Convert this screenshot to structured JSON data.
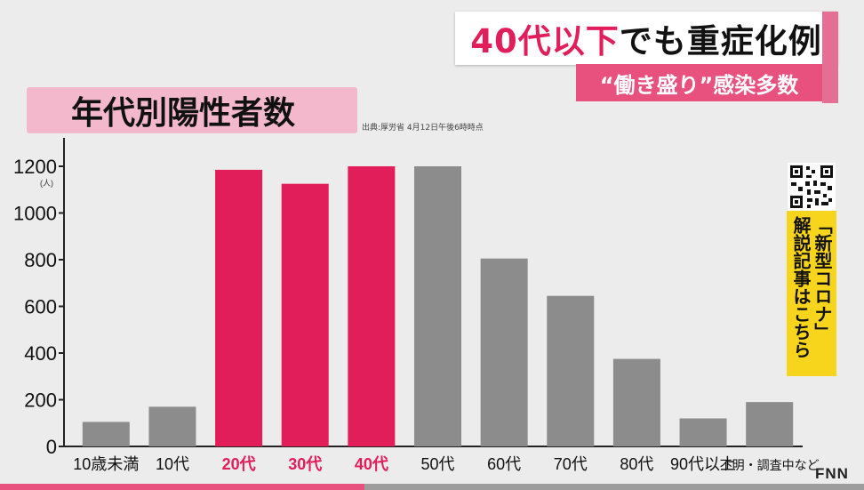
{
  "headline": {
    "accent": "40代以下",
    "rest": "でも重症化例"
  },
  "subhead": "“働き盛り”感染多数",
  "title": "年代別陽性者数",
  "source": "出典:厚労省 4月12日午後6時時点",
  "banner": {
    "line1": "「新型コロナ」",
    "line2": "解説記事はこちら"
  },
  "logo": "FNN",
  "colors": {
    "highlight": "#e11d5a",
    "default": "#8c8c8c",
    "axis": "#222222"
  },
  "chart_data": {
    "type": "bar",
    "categories": [
      "10歳未満",
      "10代",
      "20代",
      "30代",
      "40代",
      "50代",
      "60代",
      "70代",
      "80代",
      "90代以上",
      "不明・調査中など"
    ],
    "values": [
      105,
      170,
      1185,
      1125,
      1200,
      1200,
      805,
      645,
      375,
      120,
      190
    ],
    "highlighted": [
      false,
      false,
      true,
      true,
      true,
      false,
      false,
      false,
      false,
      false,
      false
    ],
    "yticks": [
      0,
      200,
      400,
      600,
      800,
      1000,
      1200
    ],
    "unit": "(人)",
    "ylim": [
      0,
      1320
    ]
  }
}
